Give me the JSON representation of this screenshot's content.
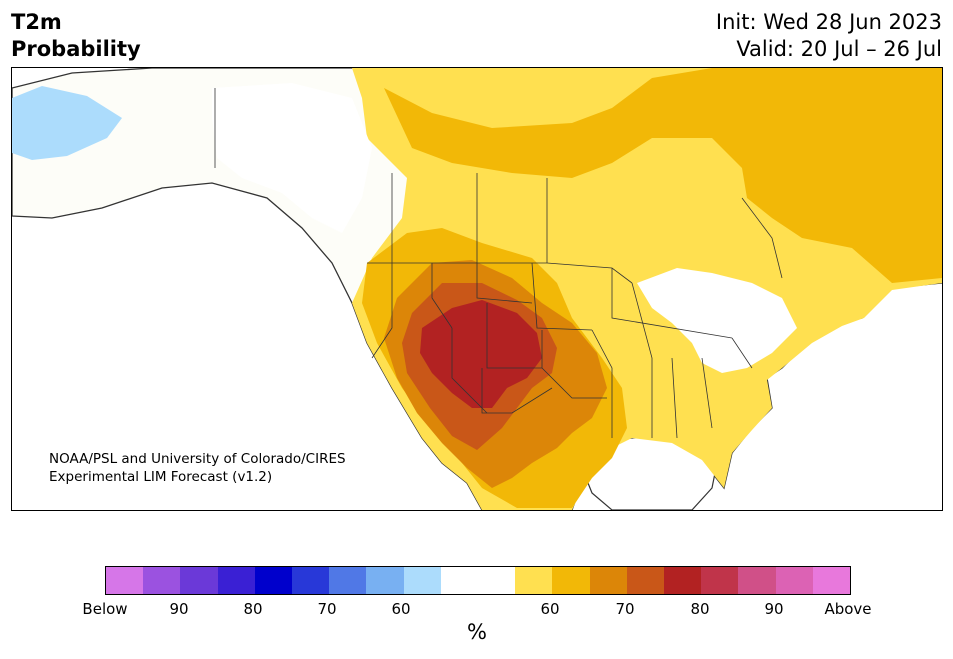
{
  "header": {
    "title_line1": "T2m",
    "title_line2": "Probability",
    "init": "Init: Wed 28 Jun 2023",
    "valid": "Valid: 20 Jul – 26 Jul"
  },
  "credit": {
    "line1": "NOAA/PSL and University of Colorado/CIRES",
    "line2": "Experimental LIM Forecast (v1.2)"
  },
  "colorbar": {
    "colors": [
      "#d676e8",
      "#9b52e0",
      "#6b39d8",
      "#3a20d4",
      "#0000cc",
      "#2838d8",
      "#5078e6",
      "#78b0f2",
      "#acdcfc",
      "#ffffff",
      "#ffffff",
      "#ffe050",
      "#f2b807",
      "#dc8608",
      "#c95718",
      "#b22222",
      "#c0344a",
      "#d05088",
      "#dc62b4",
      "#e878dc"
    ],
    "tick_labels": [
      "Below",
      "90",
      "80",
      "70",
      "60",
      "60",
      "70",
      "80",
      "90",
      "Above"
    ],
    "unit": "%"
  },
  "map": {
    "colors": {
      "land": "#fdfdf8",
      "below_60": "#acdcfc",
      "above_60": "#ffe050",
      "above_65": "#f2b807",
      "above_70": "#dc8608",
      "above_75": "#c95718",
      "above_80": "#b22222",
      "border": "#333333"
    }
  }
}
